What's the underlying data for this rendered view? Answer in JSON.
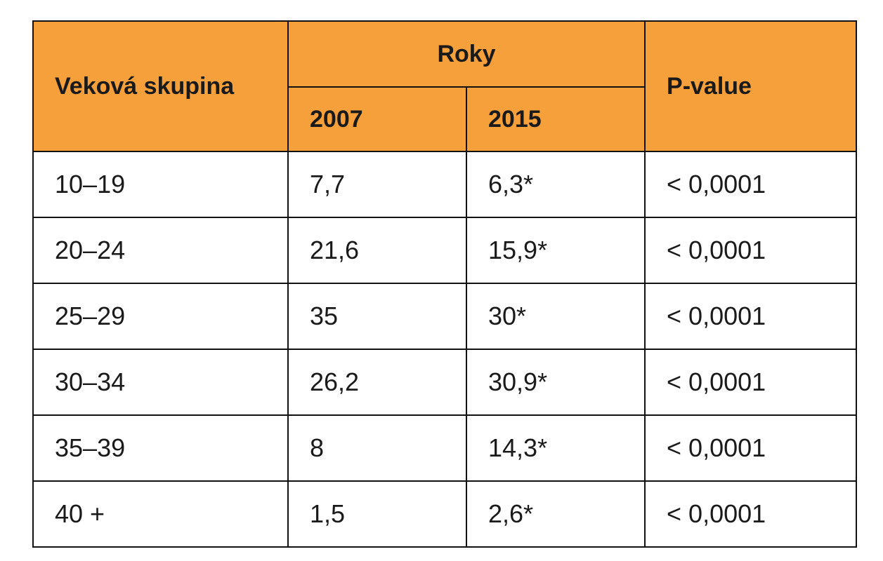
{
  "table": {
    "headers": {
      "age_group": "Veková skupina",
      "years": "Roky",
      "year_2007": "2007",
      "year_2015": "2015",
      "p_value": "P-value"
    },
    "rows": [
      {
        "age": "10–19",
        "y2007": "7,7",
        "y2015": "6,3*",
        "p": "< 0,0001"
      },
      {
        "age": "20–24",
        "y2007": "21,6",
        "y2015": "15,9*",
        "p": "< 0,0001"
      },
      {
        "age": "25–29",
        "y2007": "35",
        "y2015": "30*",
        "p": "< 0,0001"
      },
      {
        "age": "30–34",
        "y2007": "26,2",
        "y2015": "30,9*",
        "p": "< 0,0001"
      },
      {
        "age": "35–39",
        "y2007": "8",
        "y2015": "14,3*",
        "p": "< 0,0001"
      },
      {
        "age": "40 +",
        "y2007": "1,5",
        "y2015": "2,6*",
        "p": "< 0,0001"
      }
    ]
  },
  "colors": {
    "header_background": "#f5a03a",
    "border": "#111111"
  }
}
